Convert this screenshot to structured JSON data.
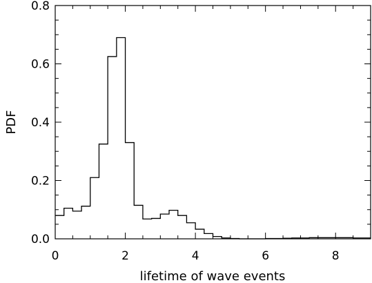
{
  "chart_data": {
    "type": "histogram",
    "xlabel": "lifetime of wave events",
    "ylabel": "PDF",
    "xlim": [
      0,
      9
    ],
    "ylim": [
      0,
      0.8
    ],
    "x_ticks": [
      "0",
      "2",
      "4",
      "6",
      "8"
    ],
    "x_tick_values": [
      0,
      2,
      4,
      6,
      8
    ],
    "y_ticks": [
      "0.0",
      "0.2",
      "0.4",
      "0.6",
      "0.8"
    ],
    "y_tick_values": [
      0,
      0.2,
      0.4,
      0.6,
      0.8
    ],
    "bin_width": 0.25,
    "bin_starts": [
      0,
      0.25,
      0.5,
      0.75,
      1.0,
      1.25,
      1.5,
      1.75,
      2.0,
      2.25,
      2.5,
      2.75,
      3.0,
      3.25,
      3.5,
      3.75,
      4.0,
      4.25,
      4.5,
      4.75,
      5.0,
      5.25,
      5.5,
      5.75,
      6.0,
      6.25,
      6.5,
      6.75,
      7.0,
      7.25,
      7.5,
      7.75,
      8.0,
      8.25,
      8.5,
      8.75
    ],
    "values": [
      0.08,
      0.105,
      0.095,
      0.112,
      0.21,
      0.325,
      0.625,
      0.69,
      0.33,
      0.115,
      0.068,
      0.07,
      0.085,
      0.098,
      0.08,
      0.055,
      0.033,
      0.018,
      0.008,
      0.003,
      0.001,
      0.0,
      0.0,
      0.0,
      0.001,
      0.001,
      0.002,
      0.003,
      0.003,
      0.004,
      0.004,
      0.004,
      0.004,
      0.004,
      0.003,
      0.003
    ],
    "grid": false,
    "line_color": "#000000"
  }
}
